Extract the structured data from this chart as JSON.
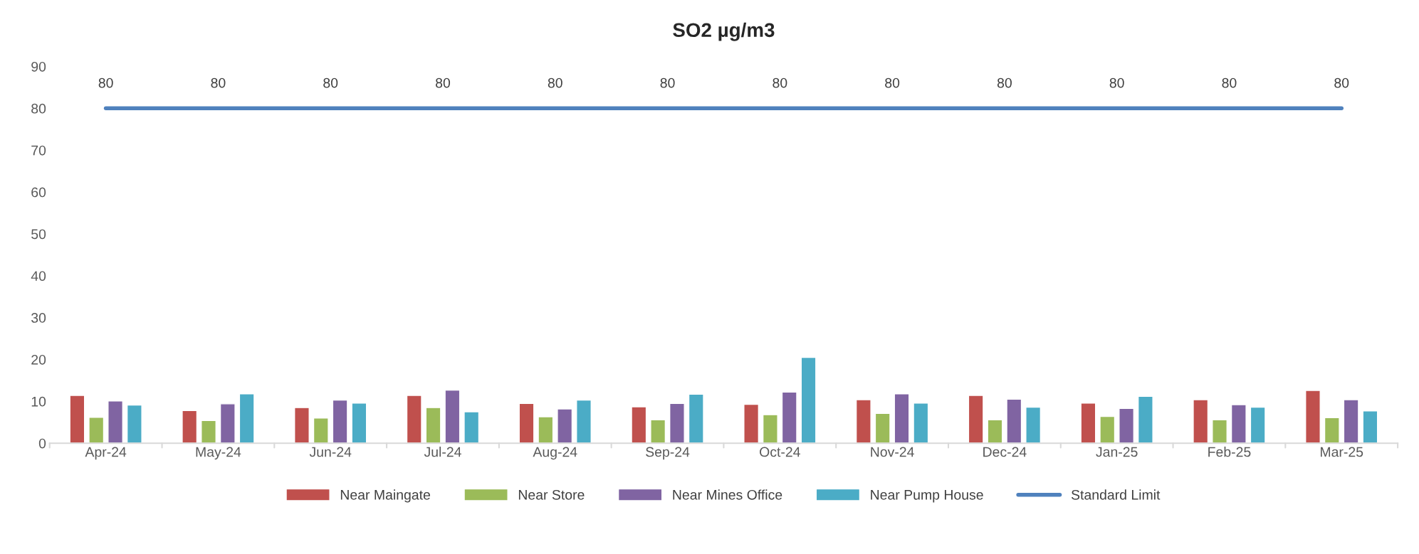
{
  "chart_data": {
    "type": "bar",
    "title": "SO2 µg/m3",
    "categories": [
      "Apr-24",
      "May-24",
      "Jun-24",
      "Jul-24",
      "Aug-24",
      "Sep-24",
      "Oct-24",
      "Nov-24",
      "Dec-24",
      "Jan-25",
      "Feb-25",
      "Mar-25"
    ],
    "series": [
      {
        "name": "Near Maingate",
        "color": "#c0504d",
        "values": [
          11.4,
          7.8,
          8.5,
          11.4,
          9.5,
          8.7,
          9.3,
          10.4,
          11.4,
          9.6,
          10.4,
          12.6
        ]
      },
      {
        "name": "Near Store",
        "color": "#9bbb59",
        "values": [
          6.2,
          5.4,
          6.0,
          8.5,
          6.3,
          5.6,
          6.8,
          7.1,
          5.6,
          6.4,
          5.6,
          6.1
        ]
      },
      {
        "name": "Near Mines Office",
        "color": "#8064a2",
        "values": [
          10.1,
          9.4,
          10.3,
          12.7,
          8.2,
          9.5,
          12.2,
          11.8,
          10.5,
          8.3,
          9.2,
          10.4
        ]
      },
      {
        "name": "Near Pump House",
        "color": "#4bacc6",
        "values": [
          9.1,
          11.8,
          9.6,
          7.5,
          10.3,
          11.7,
          20.5,
          9.6,
          8.6,
          11.2,
          8.6,
          7.7
        ]
      },
      {
        "name": "Standard Limit",
        "type": "line",
        "color": "#4f81bd",
        "values": [
          80,
          80,
          80,
          80,
          80,
          80,
          80,
          80,
          80,
          80,
          80,
          80
        ],
        "value_labels": [
          "80",
          "80",
          "80",
          "80",
          "80",
          "80",
          "80",
          "80",
          "80",
          "80",
          "80",
          "80"
        ]
      }
    ],
    "ylim": [
      0,
      90
    ],
    "yticks": [
      0,
      10,
      20,
      30,
      40,
      50,
      60,
      70,
      80,
      90
    ],
    "grid": false,
    "legend": "bottom",
    "marker": "none"
  }
}
